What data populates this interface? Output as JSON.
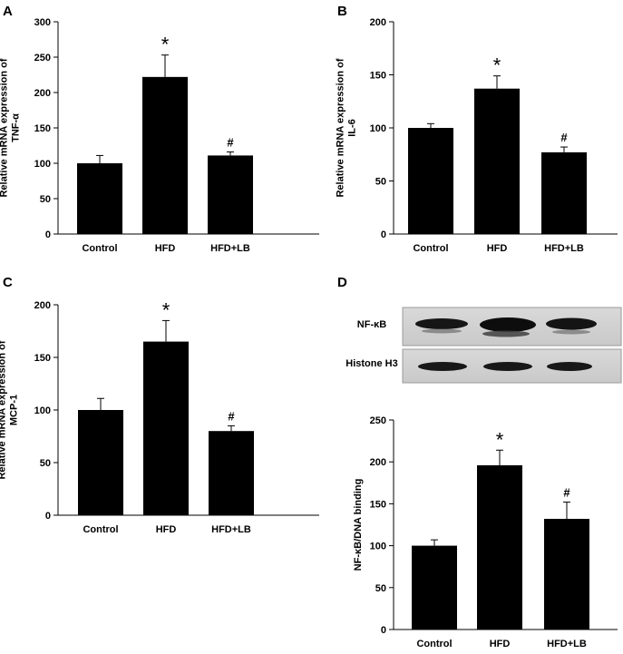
{
  "figure": {
    "panels": [
      "A",
      "B",
      "C",
      "D"
    ]
  },
  "blot": {
    "rows": [
      {
        "label": "NF-κB"
      },
      {
        "label": "Histone H3"
      }
    ]
  },
  "chart_data": [
    {
      "panel": "A",
      "type": "bar",
      "categories": [
        "Control",
        "HFD",
        "HFD+LB"
      ],
      "values": [
        100,
        222,
        111
      ],
      "errors": [
        11,
        31,
        5
      ],
      "annotations": [
        "",
        "*",
        "#"
      ],
      "ylabel_lines": [
        "Relative mRNA expression of",
        "TNF-α"
      ],
      "ylim": [
        0,
        300
      ],
      "yticks": [
        0,
        50,
        100,
        150,
        200,
        250,
        300
      ],
      "bar_color": "#000000",
      "grid": false
    },
    {
      "panel": "B",
      "type": "bar",
      "categories": [
        "Control",
        "HFD",
        "HFD+LB"
      ],
      "values": [
        100,
        137,
        77
      ],
      "errors": [
        4,
        12,
        5
      ],
      "annotations": [
        "",
        "*",
        "#"
      ],
      "ylabel_lines": [
        "Relative mRNA expression of",
        "IL-6"
      ],
      "ylim": [
        0,
        200
      ],
      "yticks": [
        0,
        50,
        100,
        150,
        200
      ],
      "bar_color": "#000000",
      "grid": false
    },
    {
      "panel": "C",
      "type": "bar",
      "categories": [
        "Control",
        "HFD",
        "HFD+LB"
      ],
      "values": [
        100,
        165,
        80
      ],
      "errors": [
        11,
        20,
        5
      ],
      "annotations": [
        "",
        "*",
        "#"
      ],
      "ylabel_lines": [
        "Relative mRNA expression of",
        "MCP-1"
      ],
      "ylim": [
        0,
        200
      ],
      "yticks": [
        0,
        50,
        100,
        150,
        200
      ],
      "bar_color": "#000000",
      "grid": false
    },
    {
      "panel": "D",
      "type": "bar",
      "categories": [
        "Control",
        "HFD",
        "HFD+LB"
      ],
      "values": [
        100,
        196,
        132
      ],
      "errors": [
        7,
        18,
        20
      ],
      "annotations": [
        "",
        "*",
        "#"
      ],
      "ylabel_lines": [
        "NF-κB/DNA binding"
      ],
      "ylim": [
        0,
        250
      ],
      "yticks": [
        0,
        50,
        100,
        150,
        200,
        250
      ],
      "bar_color": "#000000",
      "grid": false
    }
  ]
}
